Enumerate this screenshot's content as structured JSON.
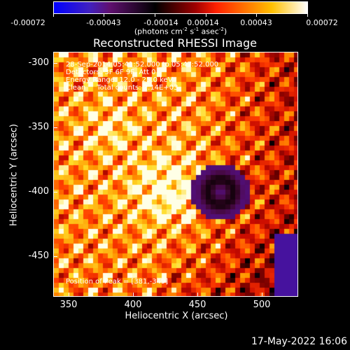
{
  "colorbar": {
    "ticks": [
      "-0.00072",
      "-0.00043",
      "-0.00014",
      "0.00014",
      "0.00043",
      "0.00072"
    ],
    "units_prefix": "(photons cm",
    "units_sup1": "-2",
    "units_mid1": " s",
    "units_sup2": "-1",
    "units_mid2": " asec",
    "units_sup3": "-2",
    "units_suffix": ")"
  },
  "title": "Reconstructed RHESSI Image",
  "info_lines": {
    "time": "28-Sep-2014 05:41:52.000 to 05:47:52.000",
    "detectors": "Detectors: 3F 6F 9F, Att 0",
    "energy": "Energy Range: 12.0 - 25.0 keV",
    "clean": "Clean     Total counts: 2.14E+03"
  },
  "peak_text": "Position of Peak = [381,-349]",
  "axes": {
    "ylabel": "Heliocentric Y (arcsec)",
    "xlabel": "Heliocentric X (arcsec)",
    "yticks": [
      "-300",
      "-350",
      "-400",
      "-450"
    ],
    "xticks": [
      "350",
      "400",
      "450",
      "500"
    ]
  },
  "datestamp": "17-May-2022 16:06",
  "colors": {
    "background": "#000000",
    "foreground": "#ffffff"
  }
}
